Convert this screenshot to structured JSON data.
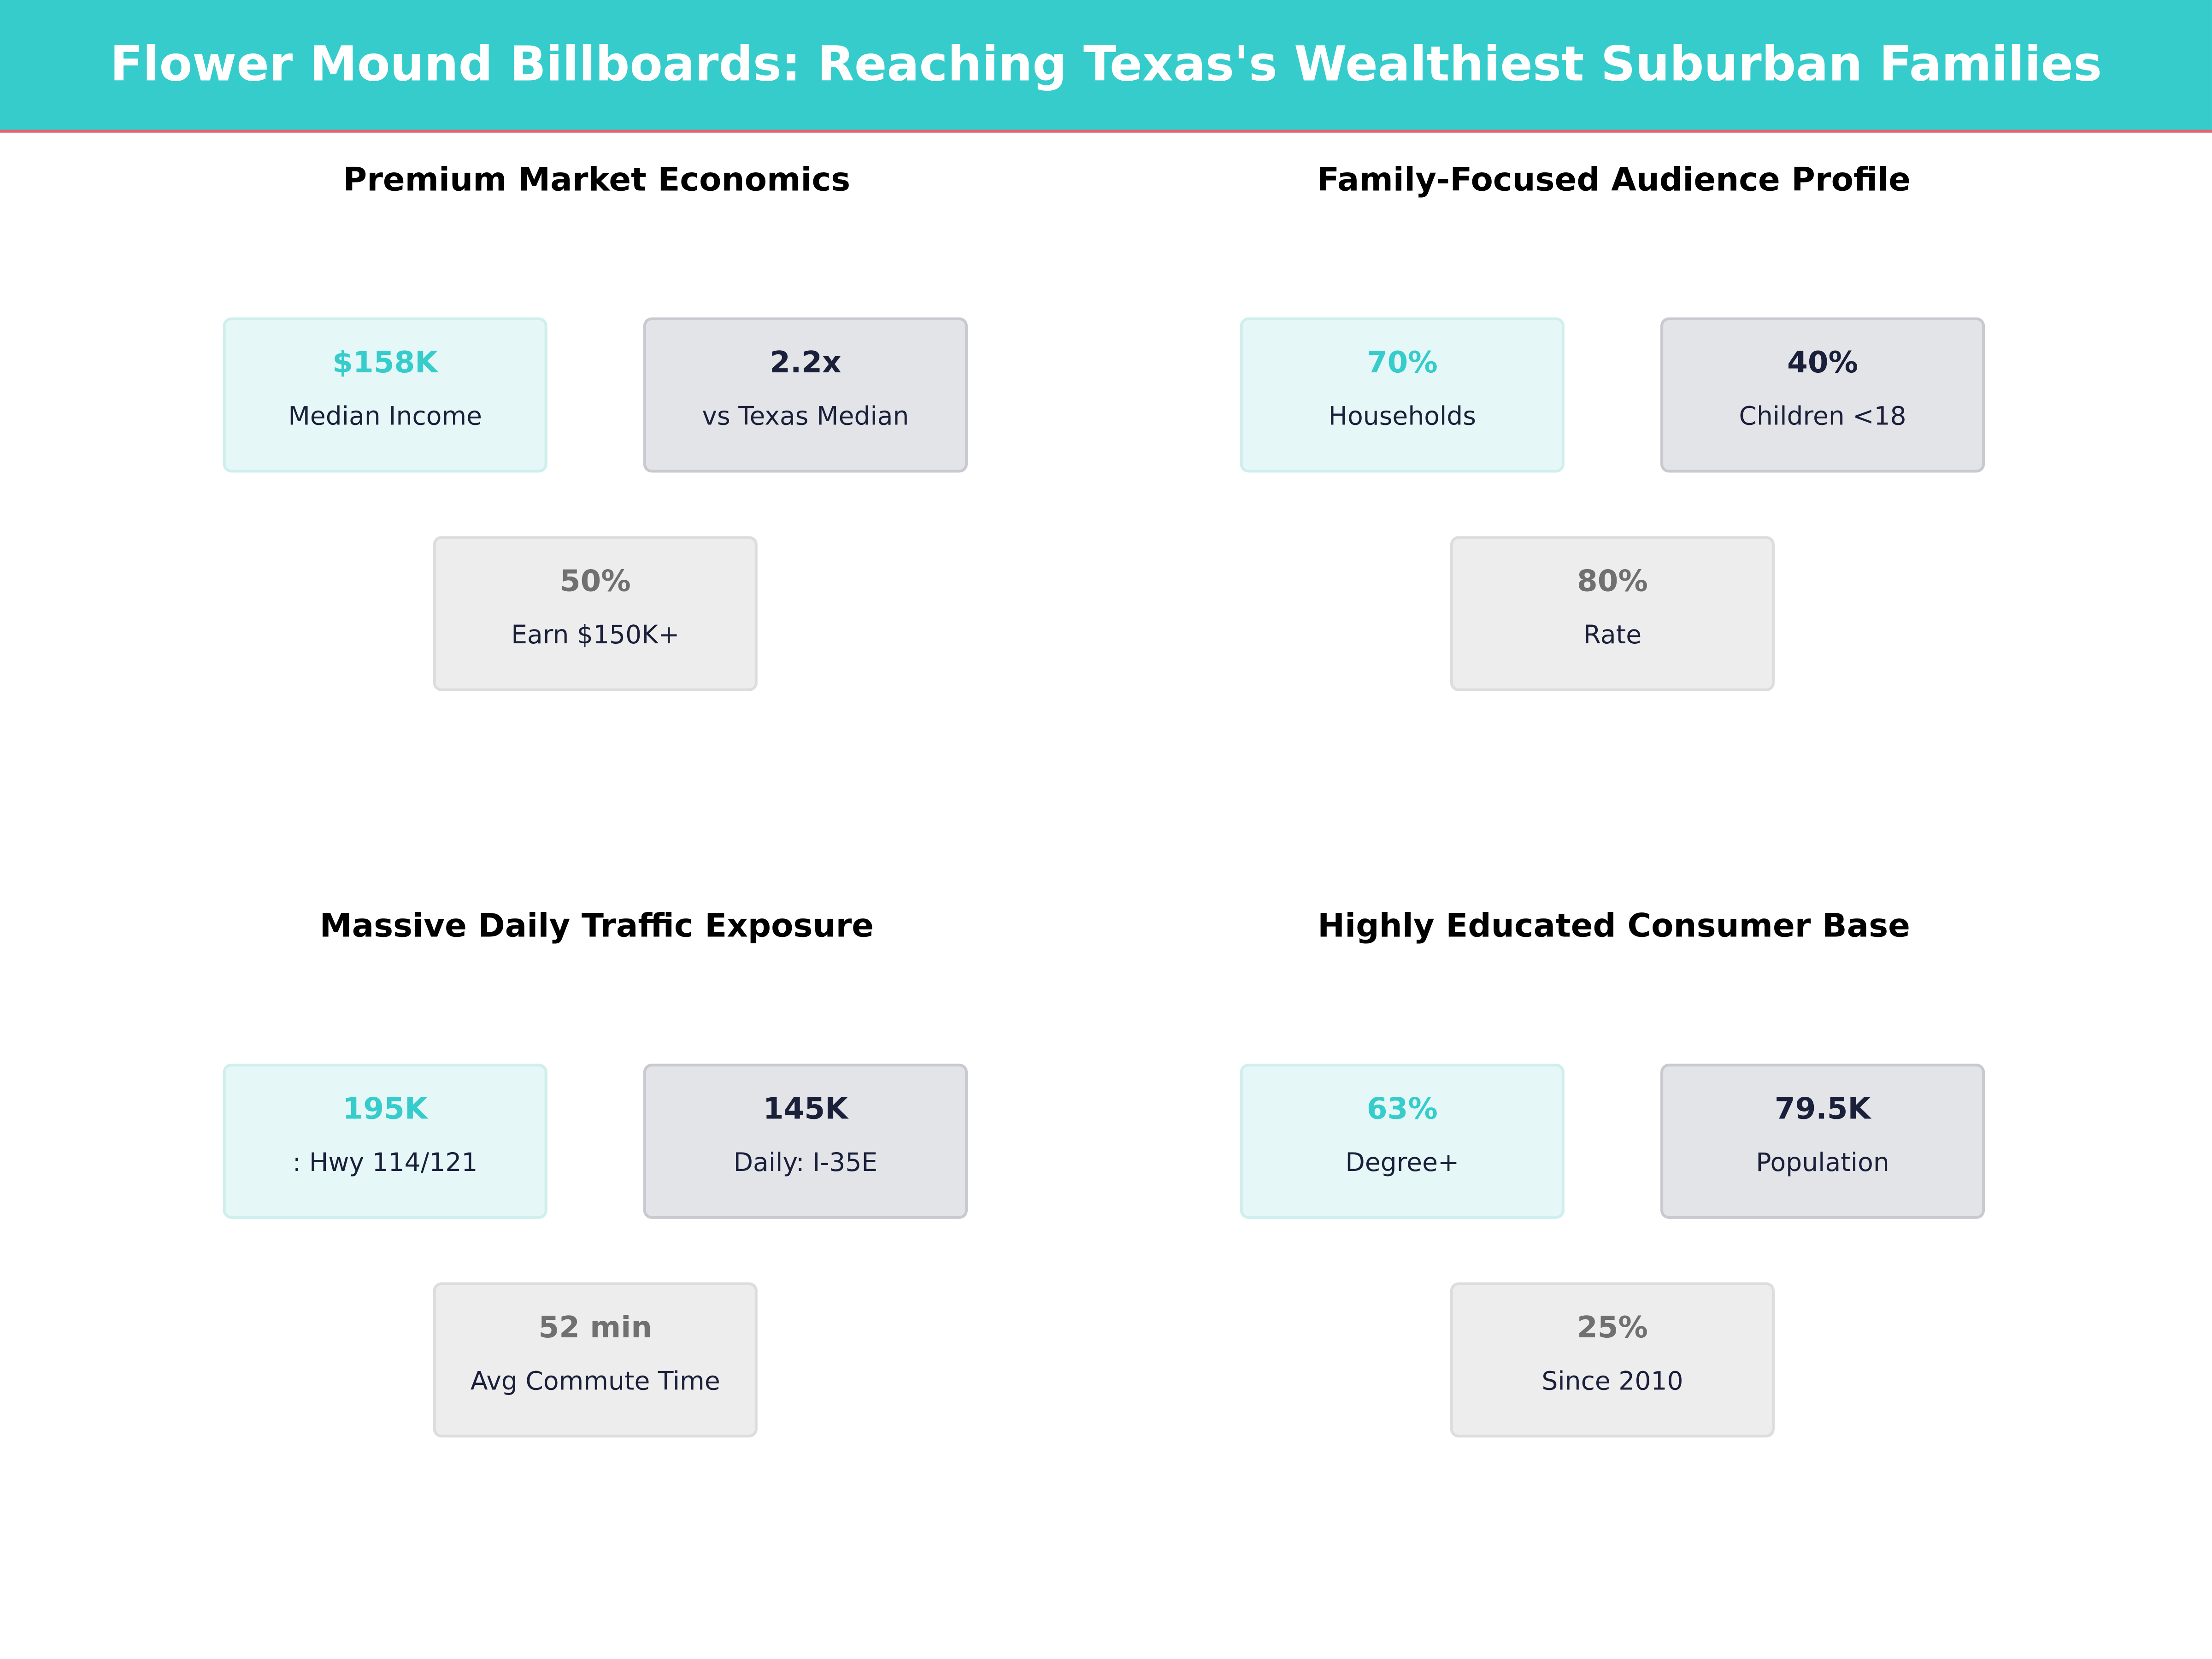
{
  "title": "Flower Mound Billboards: Reaching Texas's Wealthiest Suburban Families",
  "colors": {
    "accent": "#36CCCC",
    "rule": "#E8636F",
    "dark": "#1a1f3a",
    "muted": "#707070"
  },
  "panels": [
    {
      "title": "Premium Market Economics",
      "cards": [
        {
          "value": "$158K",
          "label": "Median Income"
        },
        {
          "value": "2.2x",
          "label": "vs Texas Median"
        },
        {
          "value": "50%",
          "label": "Earn $150K+"
        }
      ]
    },
    {
      "title": "Family-Focused Audience Profile",
      "cards": [
        {
          "value": "70%",
          "label": "Households"
        },
        {
          "value": "40%",
          "label": "Children <18"
        },
        {
          "value": "80%",
          "label": "Rate"
        }
      ]
    },
    {
      "title": "Massive Daily Traffic Exposure",
      "cards": [
        {
          "value": "195K",
          "label": ": Hwy 114/121"
        },
        {
          "value": "145K",
          "label": "Daily: I-35E"
        },
        {
          "value": "52 min",
          "label": "Avg Commute Time"
        }
      ]
    },
    {
      "title": "Highly Educated Consumer Base",
      "cards": [
        {
          "value": "63%",
          "label": "Degree+"
        },
        {
          "value": "79.5K",
          "label": "Population"
        },
        {
          "value": "25%",
          "label": "Since 2010"
        }
      ]
    }
  ]
}
